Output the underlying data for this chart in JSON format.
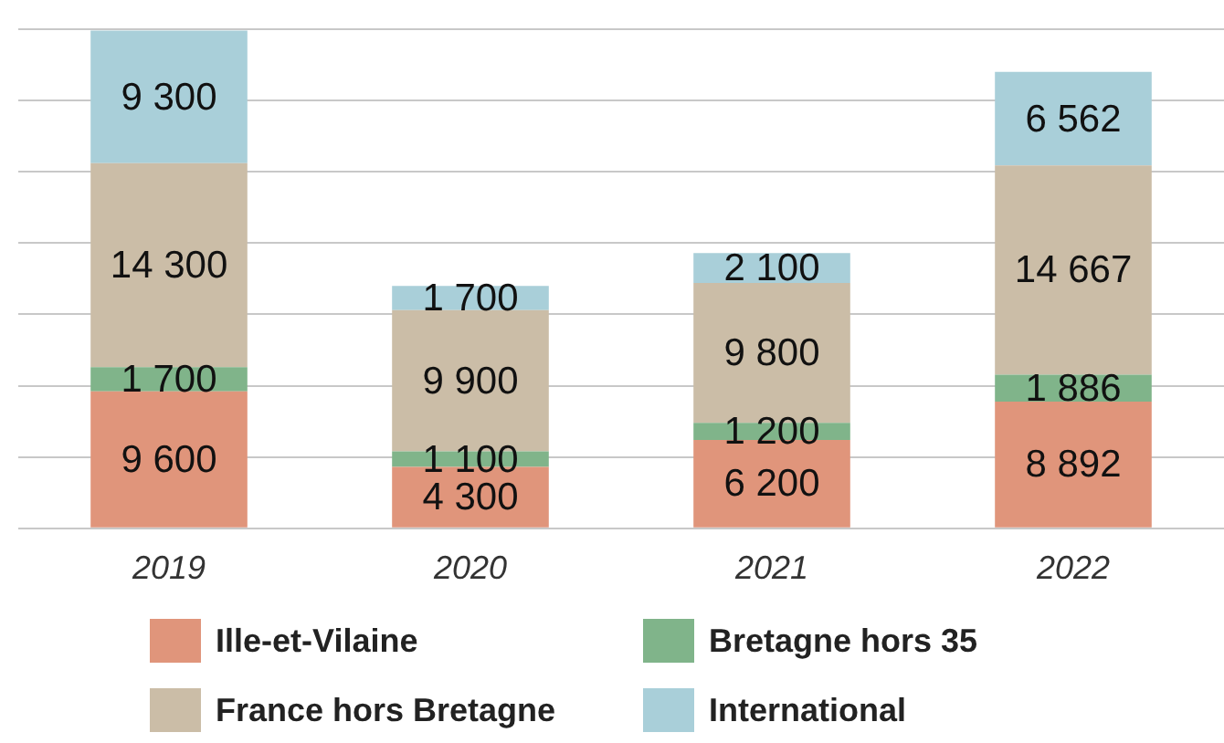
{
  "chart_data": {
    "type": "bar",
    "stacked": true,
    "categories": [
      "2019",
      "2020",
      "2021",
      "2022"
    ],
    "series": [
      {
        "name": "Ille-et-Vilaine",
        "color": "#e0957b",
        "values": [
          9600,
          4300,
          6200,
          8892
        ],
        "value_labels": [
          "9 600",
          "4 300",
          "6 200",
          "8 892"
        ]
      },
      {
        "name": "Bretagne hors 35",
        "color": "#80b48a",
        "values": [
          1700,
          1100,
          1200,
          1886
        ],
        "value_labels": [
          "1 700",
          "1 100",
          "1 200",
          "1 886"
        ]
      },
      {
        "name": "France hors Bretagne",
        "color": "#cbbda7",
        "values": [
          14300,
          9900,
          9800,
          14667
        ],
        "value_labels": [
          "14 300",
          "9 900",
          "9 800",
          "14 667"
        ]
      },
      {
        "name": "International",
        "color": "#a9cfd9",
        "values": [
          9300,
          1700,
          2100,
          6562
        ],
        "value_labels": [
          "9 300",
          "1 700",
          "2 100",
          "6 562"
        ]
      }
    ],
    "ylim": [
      0,
      35000
    ],
    "yticks": [
      {
        "value": 0,
        "label": null
      },
      {
        "value": 5000,
        "label": null
      },
      {
        "value": 10000,
        "label": null
      },
      {
        "value": 15000,
        "label": null
      },
      {
        "value": 20000,
        "label": null
      },
      {
        "value": 25000,
        "label": null
      },
      {
        "value": 30000,
        "label": null
      },
      {
        "value": 35000,
        "label": null
      }
    ],
    "tick_labels": "x",
    "grid": "y",
    "legend": "bottom"
  }
}
